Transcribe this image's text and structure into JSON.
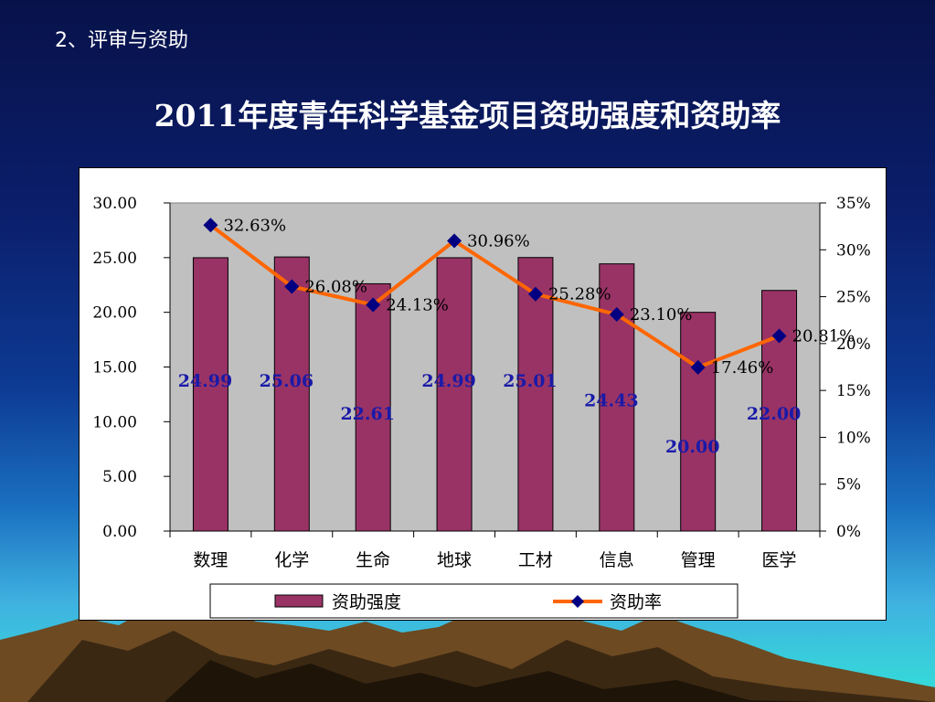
{
  "section_label": "2、评审与资助",
  "title": "2011年度青年科学基金项目资助强度和资助率",
  "colors": {
    "bar": "#993366",
    "line": "#ff6600",
    "marker": "#000080",
    "plot_bg": "#c0c0c0",
    "value_label": "#1a1aa8"
  },
  "chart_data": {
    "type": "bar",
    "title": "2011年度青年科学基金项目资助强度和资助率",
    "categories": [
      "数理",
      "化学",
      "生命",
      "地球",
      "工材",
      "信息",
      "管理",
      "医学"
    ],
    "series": [
      {
        "name": "资助强度",
        "type": "bar",
        "axis": "left",
        "values": [
          24.99,
          25.06,
          22.61,
          24.99,
          25.01,
          24.43,
          20.0,
          22.0
        ],
        "labels": [
          "24.99",
          "25.06",
          "22.61",
          "24.99",
          "25.01",
          "24.43",
          "20.00",
          "22.00"
        ]
      },
      {
        "name": "资助率",
        "type": "line",
        "axis": "right",
        "values": [
          32.63,
          26.08,
          24.13,
          30.96,
          25.28,
          23.1,
          17.46,
          20.81
        ],
        "labels": [
          "32.63%",
          "26.08%",
          "24.13%",
          "30.96%",
          "25.28%",
          "23.10%",
          "17.46%",
          "20.81%"
        ]
      }
    ],
    "y_left": {
      "range": [
        0,
        30
      ],
      "ticks": [
        "30.00",
        "25.00",
        "20.00",
        "15.00",
        "10.00",
        "5.00",
        "0.00"
      ]
    },
    "y_right": {
      "range": [
        0,
        35
      ],
      "unit": "%",
      "ticks": [
        "35%",
        "30%",
        "25%",
        "20%",
        "15%",
        "10%",
        "5%",
        "0%"
      ]
    },
    "grid": false,
    "legend": "bottom"
  }
}
